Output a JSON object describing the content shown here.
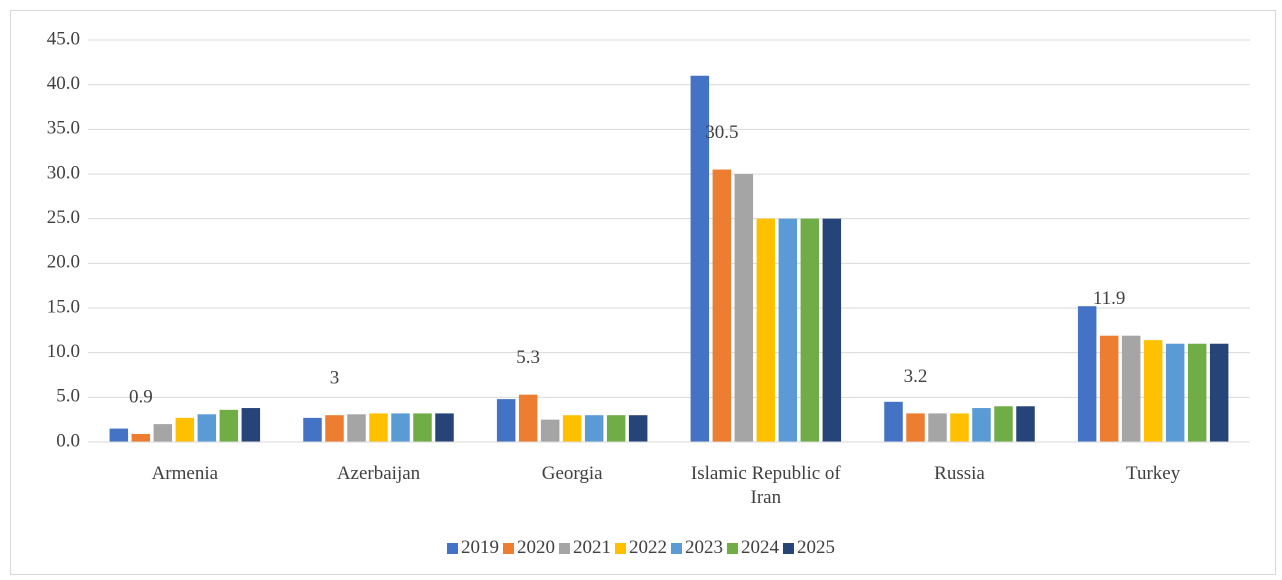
{
  "chart_data": {
    "type": "bar",
    "categories": [
      "Armenia",
      "Azerbaijan",
      "Georgia",
      "Islamic Republic of Iran",
      "Russia",
      "Turkey"
    ],
    "series": [
      {
        "name": "2019",
        "color": "#4472c4",
        "values": [
          1.5,
          2.7,
          4.8,
          41.0,
          4.5,
          15.2
        ]
      },
      {
        "name": "2020",
        "color": "#ed7d31",
        "values": [
          0.9,
          3,
          5.3,
          30.5,
          3.2,
          11.9
        ],
        "value_labels": [
          "0.9",
          "3",
          "5.3",
          "30.5",
          "3.2",
          "11.9"
        ]
      },
      {
        "name": "2021",
        "color": "#a5a5a5",
        "values": [
          2.0,
          3.1,
          2.5,
          30.0,
          3.2,
          11.9
        ]
      },
      {
        "name": "2022",
        "color": "#ffc000",
        "values": [
          2.7,
          3.2,
          3.0,
          25.0,
          3.2,
          11.4
        ]
      },
      {
        "name": "2023",
        "color": "#5b9bd5",
        "values": [
          3.1,
          3.2,
          3.0,
          25.0,
          3.8,
          11.0
        ]
      },
      {
        "name": "2024",
        "color": "#70ad47",
        "values": [
          3.6,
          3.2,
          3.0,
          25.0,
          4.0,
          11.0
        ]
      },
      {
        "name": "2025",
        "color": "#264478",
        "values": [
          3.8,
          3.2,
          3.0,
          25.0,
          4.0,
          11.0
        ]
      }
    ],
    "ylim": [
      0,
      45
    ],
    "yticks": [
      {
        "value": 0,
        "label": "0.0"
      },
      {
        "value": 5,
        "label": "5.0"
      },
      {
        "value": 10,
        "label": "10.0"
      },
      {
        "value": 15,
        "label": "15.0"
      },
      {
        "value": 20,
        "label": "20.0"
      },
      {
        "value": 25,
        "label": "25.0"
      },
      {
        "value": 30,
        "label": "30.0"
      },
      {
        "value": 35,
        "label": "35.0"
      },
      {
        "value": 40,
        "label": "40.0"
      },
      {
        "value": 45,
        "label": "45.0"
      }
    ],
    "grid": true,
    "legend": "bottom"
  }
}
